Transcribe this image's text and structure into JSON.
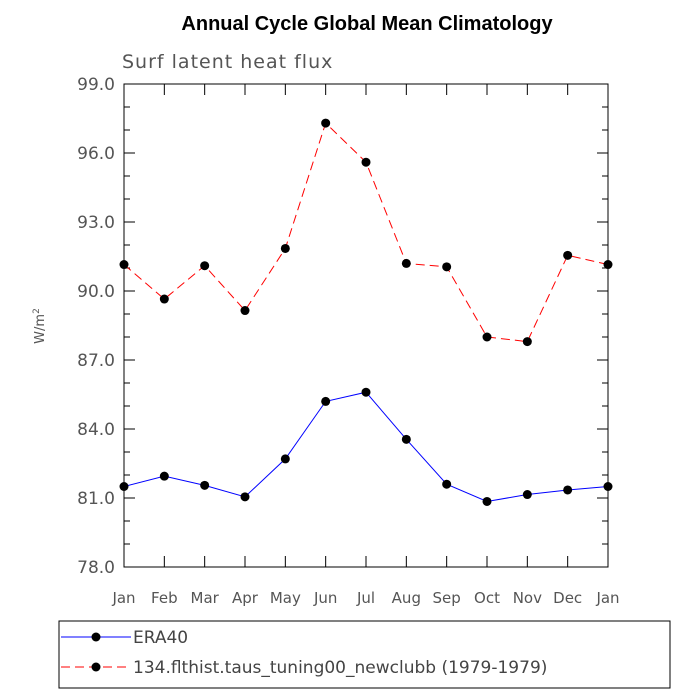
{
  "chart_data": {
    "type": "line",
    "title": "Annual Cycle Global Mean Climatology",
    "subtitle": "Surf latent heat flux",
    "ylabel": "W/m",
    "ylabel_sup": "2",
    "xlabel": "",
    "ylim": [
      78.0,
      99.0
    ],
    "yticks": [
      "78.0",
      "81.0",
      "84.0",
      "87.0",
      "90.0",
      "93.0",
      "96.0",
      "99.0"
    ],
    "ytick_values": [
      78,
      81,
      84,
      87,
      90,
      93,
      96,
      99
    ],
    "categories": [
      "Jan",
      "Feb",
      "Mar",
      "Apr",
      "May",
      "Jun",
      "Jul",
      "Aug",
      "Sep",
      "Oct",
      "Nov",
      "Dec",
      "Jan"
    ],
    "series": [
      {
        "name": "ERA40",
        "color": "#0000ff",
        "dash": "solid",
        "values": [
          81.5,
          81.95,
          81.55,
          81.05,
          82.7,
          85.2,
          85.6,
          83.55,
          81.6,
          80.85,
          81.15,
          81.35,
          81.5
        ]
      },
      {
        "name": "134.flthist.taus_tuning00_newclubb (1979-1979)",
        "color": "#ff0000",
        "dash": "dashed",
        "values": [
          91.15,
          89.65,
          91.1,
          89.15,
          91.85,
          97.3,
          95.6,
          91.2,
          91.05,
          88.0,
          87.8,
          91.55,
          91.15
        ]
      }
    ],
    "legend_position": "bottom"
  }
}
